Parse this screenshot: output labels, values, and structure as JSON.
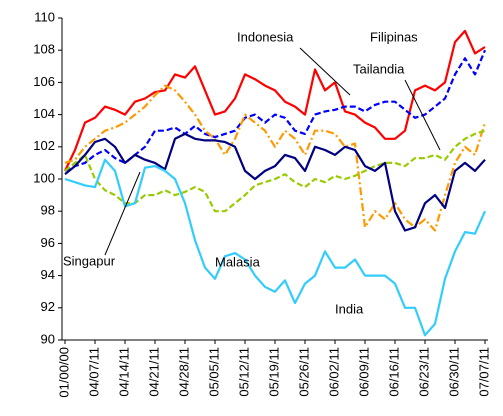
{
  "chart_data": {
    "type": "line",
    "categories": [
      "01/00/00",
      null,
      null,
      "04/07/11",
      null,
      null,
      "04/14/11",
      null,
      null,
      "04/21/11",
      null,
      null,
      "04/28/11",
      null,
      null,
      "05/05/11",
      null,
      null,
      "05/12/11",
      null,
      null,
      "05/19/11",
      null,
      null,
      "05/26/11",
      null,
      null,
      "06/02/11",
      null,
      null,
      "06/09/11",
      null,
      null,
      "06/16/11",
      null,
      null,
      "06/23/11",
      null,
      null,
      "06/30/11",
      null,
      null,
      "07/07/11"
    ],
    "series": [
      {
        "name": "Filipinas",
        "color": "#ff0000",
        "dash": "solid",
        "values": [
          100.5,
          101.8,
          103.5,
          103.8,
          104.5,
          104.3,
          104,
          104.8,
          105,
          105.4,
          105.5,
          106.5,
          106.3,
          107,
          105.5,
          104,
          104.2,
          105,
          106.5,
          106.2,
          105.8,
          105.5,
          104.8,
          104.5,
          104,
          106.8,
          105.5,
          106,
          104.2,
          104,
          103.5,
          103.2,
          102.5,
          102.5,
          103,
          105.5,
          105.8,
          105.5,
          106,
          108.5,
          109.2,
          107.8,
          108.2
        ]
      },
      {
        "name": "Indonesia",
        "color": "#0000ff",
        "dash": "dashed",
        "values": [
          100.5,
          100.8,
          101,
          101.5,
          101.8,
          101.3,
          101,
          101.5,
          102,
          103,
          103,
          103.2,
          102.8,
          103.3,
          102.8,
          102.6,
          102.8,
          103,
          103.8,
          104,
          103.5,
          104,
          103.8,
          103,
          102.8,
          104,
          104.2,
          104.3,
          104.5,
          104.5,
          104.2,
          104.6,
          104.8,
          104.8,
          104.3,
          103.8,
          104,
          104.5,
          105,
          106.5,
          107.5,
          106.5,
          108
        ]
      },
      {
        "name": "Malasia",
        "color": "#ff9900",
        "dash": "dashdot",
        "values": [
          101,
          101.2,
          102,
          102.5,
          103,
          103.2,
          103.5,
          104,
          104.5,
          105.2,
          105.8,
          105.5,
          104.8,
          104,
          103,
          102.5,
          101.5,
          102.5,
          104,
          103.5,
          103,
          102,
          103,
          102.5,
          101.5,
          103,
          103,
          102.8,
          102,
          102.2,
          97,
          98,
          97.5,
          98.5,
          97.5,
          97,
          97.5,
          96.8,
          99,
          101,
          102,
          101.5,
          103.5
        ]
      },
      {
        "name": "Tailandia",
        "color": "#99cc00",
        "dash": "dashed",
        "values": [
          100.5,
          101,
          101.5,
          100,
          99.3,
          99,
          98.5,
          98.5,
          99,
          99,
          99.3,
          99,
          99.2,
          99.5,
          99.2,
          98,
          98,
          98.5,
          99,
          99.6,
          99.8,
          100,
          100.3,
          99.8,
          99.5,
          100,
          99.8,
          100.2,
          100,
          100.2,
          100.5,
          100.8,
          101,
          101,
          100.8,
          101.3,
          101.3,
          101.5,
          101.2,
          102,
          102.5,
          102.8,
          103
        ]
      },
      {
        "name": "Singapur",
        "color": "#000080",
        "dash": "solid",
        "values": [
          100.3,
          100.8,
          101.5,
          102.3,
          102.5,
          102,
          101,
          101.5,
          101.2,
          101,
          100.6,
          102.5,
          102.8,
          102.5,
          102.4,
          102.4,
          102.3,
          102,
          100.5,
          100,
          100.5,
          100.8,
          101.5,
          101.3,
          100.5,
          102,
          101.8,
          101.5,
          102,
          101.8,
          100.8,
          100.5,
          101,
          98,
          96.8,
          97,
          98.5,
          99,
          98.2,
          100.5,
          101,
          100.5,
          101.2
        ]
      },
      {
        "name": "India",
        "color": "#33ccff",
        "dash": "solid",
        "values": [
          100,
          99.8,
          99.6,
          99.5,
          101.2,
          100.5,
          98.3,
          98.5,
          100.7,
          100.8,
          100.5,
          100,
          98.5,
          96.2,
          94.5,
          93.8,
          95.2,
          95.4,
          95,
          94,
          93.3,
          93,
          93.7,
          92.3,
          93.5,
          94,
          95.5,
          94.5,
          94.5,
          95,
          94,
          94,
          94,
          93.5,
          92,
          92,
          90.3,
          91,
          93.8,
          95.5,
          96.7,
          96.6,
          98
        ]
      }
    ],
    "ylim": [
      90,
      110
    ],
    "yticks": [
      90,
      92,
      94,
      96,
      98,
      100,
      102,
      104,
      106,
      108,
      110
    ],
    "grid": false
  }
}
